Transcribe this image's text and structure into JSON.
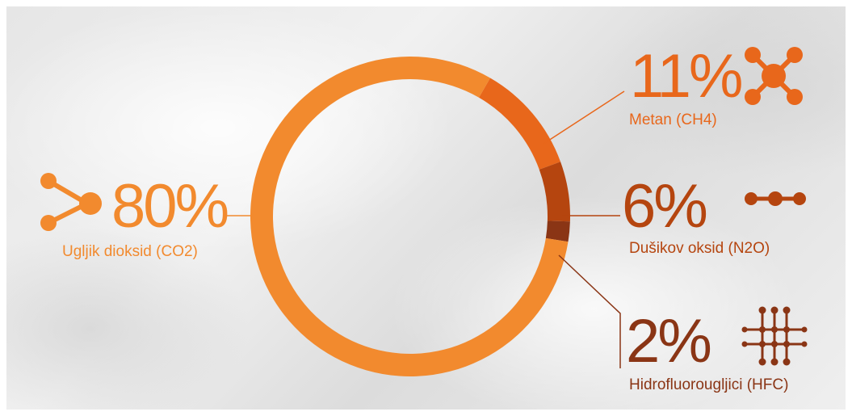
{
  "colors": {
    "co2": "#f28a2e",
    "ch4": "#e8671b",
    "n2o": "#b5450f",
    "hfc": "#8a3515"
  },
  "chart_data": {
    "type": "pie",
    "variant": "donut",
    "series": [
      {
        "name": "Ugljik dioksid (CO2)",
        "percent_label": "80%",
        "value": 80,
        "color": "#f28a2e",
        "icon": "molecule-branch-icon"
      },
      {
        "name": "Metan (CH4)",
        "percent_label": "11%",
        "value": 11,
        "color": "#e8671b",
        "icon": "molecule-cross-icon"
      },
      {
        "name": "Dušikov oksid (N2O)",
        "percent_label": "6%",
        "value": 6,
        "color": "#b5450f",
        "icon": "molecule-chain-icon"
      },
      {
        "name": "Hidrofluorougljici (HFC)",
        "percent_label": "2%",
        "value": 2,
        "color": "#8a3515",
        "icon": "molecule-grid-icon"
      }
    ]
  }
}
